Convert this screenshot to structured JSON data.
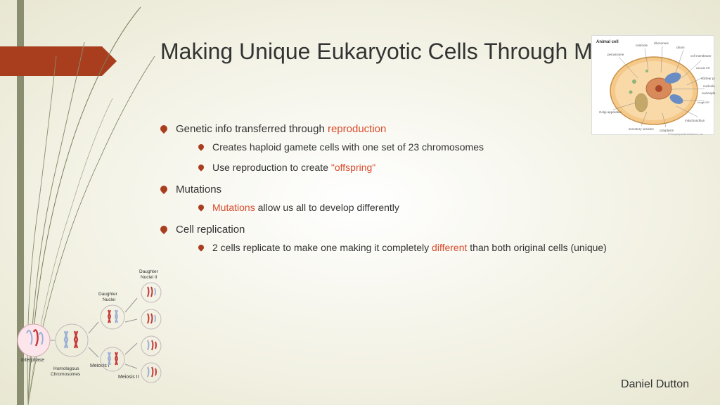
{
  "title": "Making Unique Eukaryotic Cells Through Meiosis",
  "bullets": [
    {
      "pre": "Genetic info transferred through ",
      "hl": "reproduction",
      "post": ""
    },
    {
      "sub": true,
      "pre": "Creates haploid gamete cells with one set of 23 chromosomes",
      "hl": "",
      "post": ""
    },
    {
      "sub": true,
      "pre": "Use reproduction to create ",
      "hl": "\"offspring\"",
      "post": ""
    },
    {
      "pre": "Mutations",
      "hl": "",
      "post": ""
    },
    {
      "sub": true,
      "pre": "",
      "hl": "Mutations",
      "post": " allow us all to develop differently"
    },
    {
      "pre": "Cell replication",
      "hl": "",
      "post": ""
    },
    {
      "sub": true,
      "pre": "2 cells replicate to make one making it completely ",
      "hl": "different",
      "post": " than both original cells (unique)"
    }
  ],
  "author": "Daniel Dutton",
  "meiosis_labels": {
    "a": "Interphase",
    "b": "Homologous\nChromosomes",
    "c": "Meiosis I",
    "d": "Daughter\nNuclei",
    "e": "Meiosis II",
    "f": "Daughter\nNuclei II"
  },
  "cell_caption": "Animal cell",
  "colors": {
    "accent": "#a83e1e",
    "leftbar": "#8a8d6f",
    "highlight": "#d84c2c",
    "text": "#333333",
    "bg_inner": "#ffffff",
    "bg_outer": "#e8e7d2"
  }
}
